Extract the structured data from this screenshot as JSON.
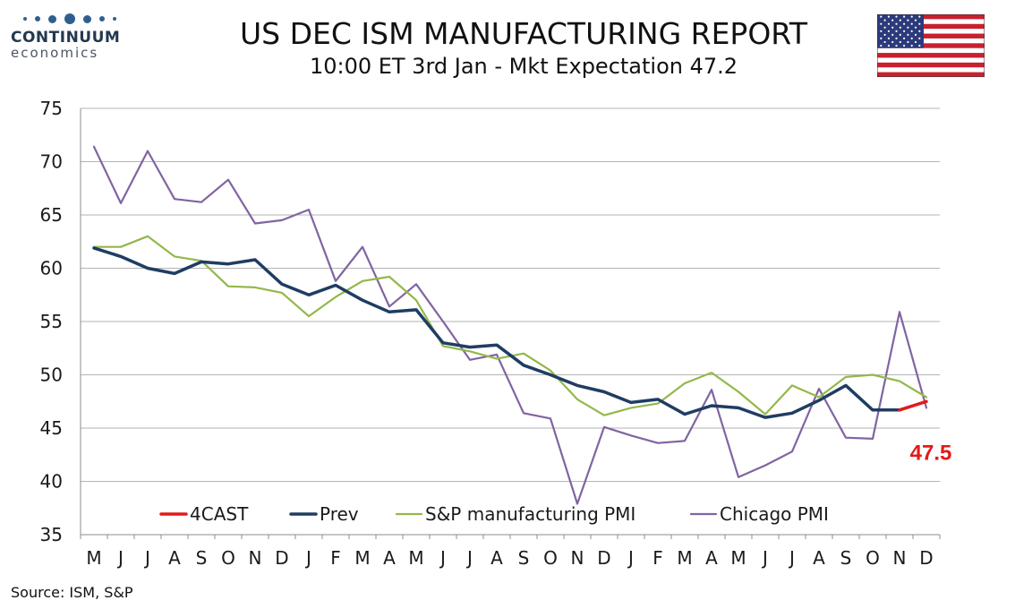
{
  "header": {
    "logo_name": "CONTINUUM",
    "logo_sub": "economics",
    "title": "US DEC ISM MANUFACTURING REPORT",
    "subtitle": "10:00 ET 3rd Jan - Mkt Expectation 47.2"
  },
  "flag": {
    "icon": "us-flag-icon"
  },
  "source": "Source: ISM, S&P",
  "colors": {
    "4CAST": "#e21a1a",
    "Prev": "#1f3d63",
    "S&P manufacturing PMI": "#93b84a",
    "Chicago PMI": "#8064a2",
    "forecast_label": "#e21a1a",
    "grid": "#b3b3b3",
    "axis": "#8c8c8c"
  },
  "chart_data": {
    "type": "line",
    "title": "US DEC ISM MANUFACTURING REPORT",
    "xlabel": "",
    "ylabel": "",
    "ylim": [
      35,
      75
    ],
    "yticks": [
      35,
      40,
      45,
      50,
      55,
      60,
      65,
      70,
      75
    ],
    "grid": true,
    "legend_placement": "bottom",
    "categories": [
      "M",
      "J",
      "J",
      "A",
      "S",
      "O",
      "N",
      "D",
      "J",
      "F",
      "M",
      "A",
      "M",
      "J",
      "J",
      "A",
      "S",
      "O",
      "N",
      "D",
      "J",
      "F",
      "M",
      "A",
      "M",
      "J",
      "J",
      "A",
      "S",
      "O",
      "N",
      "D"
    ],
    "series": [
      {
        "name": "4CAST",
        "values": [
          null,
          null,
          null,
          null,
          null,
          null,
          null,
          null,
          null,
          null,
          null,
          null,
          null,
          null,
          null,
          null,
          null,
          null,
          null,
          null,
          null,
          null,
          null,
          null,
          null,
          null,
          null,
          null,
          null,
          null,
          46.7,
          47.5
        ]
      },
      {
        "name": "Prev",
        "values": [
          61.9,
          61.1,
          60.0,
          59.5,
          60.6,
          60.4,
          60.8,
          58.5,
          57.5,
          58.4,
          57.0,
          55.9,
          56.1,
          53.0,
          52.6,
          52.8,
          50.9,
          50.0,
          49.0,
          48.4,
          47.4,
          47.7,
          46.3,
          47.1,
          46.9,
          46.0,
          46.4,
          47.6,
          49.0,
          46.7,
          46.7,
          null
        ]
      },
      {
        "name": "S&P manufacturing PMI",
        "values": [
          62.0,
          62.0,
          63.0,
          61.1,
          60.7,
          58.3,
          58.2,
          57.7,
          55.5,
          57.3,
          58.8,
          59.2,
          57.0,
          52.7,
          52.2,
          51.5,
          52.0,
          50.4,
          47.7,
          46.2,
          46.9,
          47.3,
          49.2,
          50.2,
          48.4,
          46.3,
          49.0,
          47.9,
          49.8,
          50.0,
          49.4,
          47.9
        ]
      },
      {
        "name": "Chicago PMI",
        "values": [
          71.4,
          66.1,
          71.0,
          66.5,
          66.2,
          68.3,
          64.2,
          64.5,
          65.5,
          58.8,
          62.0,
          56.4,
          58.5,
          55.0,
          51.4,
          51.9,
          46.4,
          45.9,
          37.9,
          45.1,
          44.3,
          43.6,
          43.8,
          48.6,
          40.4,
          41.5,
          42.8,
          48.7,
          44.1,
          44.0,
          55.9,
          46.9
        ]
      }
    ],
    "annotations": [
      {
        "text": "47.5",
        "series": "4CAST",
        "category_index": 31
      }
    ]
  }
}
